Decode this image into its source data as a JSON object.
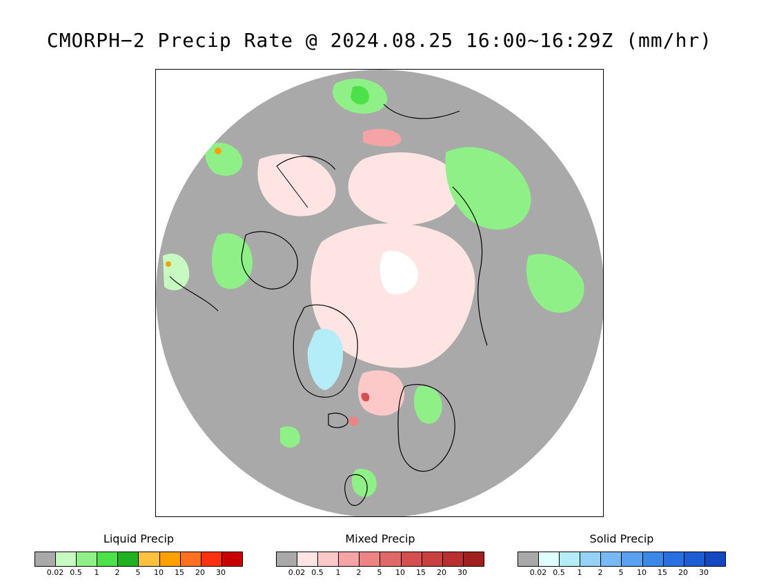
{
  "title": "CMORPH−2 Precip Rate @ 2024.08.25 16:00~16:29Z (mm/hr)",
  "map": {
    "projection": "north polar stereographic",
    "colors": {
      "no_precip": "#a9a9a9",
      "ocean_edge": "#ffffff",
      "coastline": "#000000"
    }
  },
  "legends": [
    {
      "title": "Liquid Precip",
      "colors": [
        "#a9a9a9",
        "#c6fac0",
        "#8ef086",
        "#4ce04a",
        "#22b023",
        "#ffc040",
        "#ffa000",
        "#ff7020",
        "#ff3010",
        "#c80000"
      ],
      "ticks": [
        "0.02",
        "0.5",
        "1",
        "2",
        "5",
        "10",
        "15",
        "20",
        "30"
      ]
    },
    {
      "title": "Mixed Precip",
      "colors": [
        "#a9a9a9",
        "#ffe4e4",
        "#fcc8c8",
        "#f4a4a4",
        "#ec8484",
        "#e06868",
        "#d45050",
        "#c84040",
        "#b83030",
        "#a02020"
      ],
      "ticks": [
        "0.02",
        "0.5",
        "1",
        "2",
        "5",
        "10",
        "15",
        "20",
        "30"
      ]
    },
    {
      "title": "Solid Precip",
      "colors": [
        "#a9a9a9",
        "#e0ffff",
        "#b4ecf8",
        "#96d2f8",
        "#78b8f4",
        "#5aa0ee",
        "#3c88e8",
        "#2870e0",
        "#1c5cd4",
        "#1448c0"
      ],
      "ticks": [
        "0.02",
        "0.5",
        "1",
        "2",
        "5",
        "10",
        "15",
        "20",
        "30"
      ]
    }
  ]
}
